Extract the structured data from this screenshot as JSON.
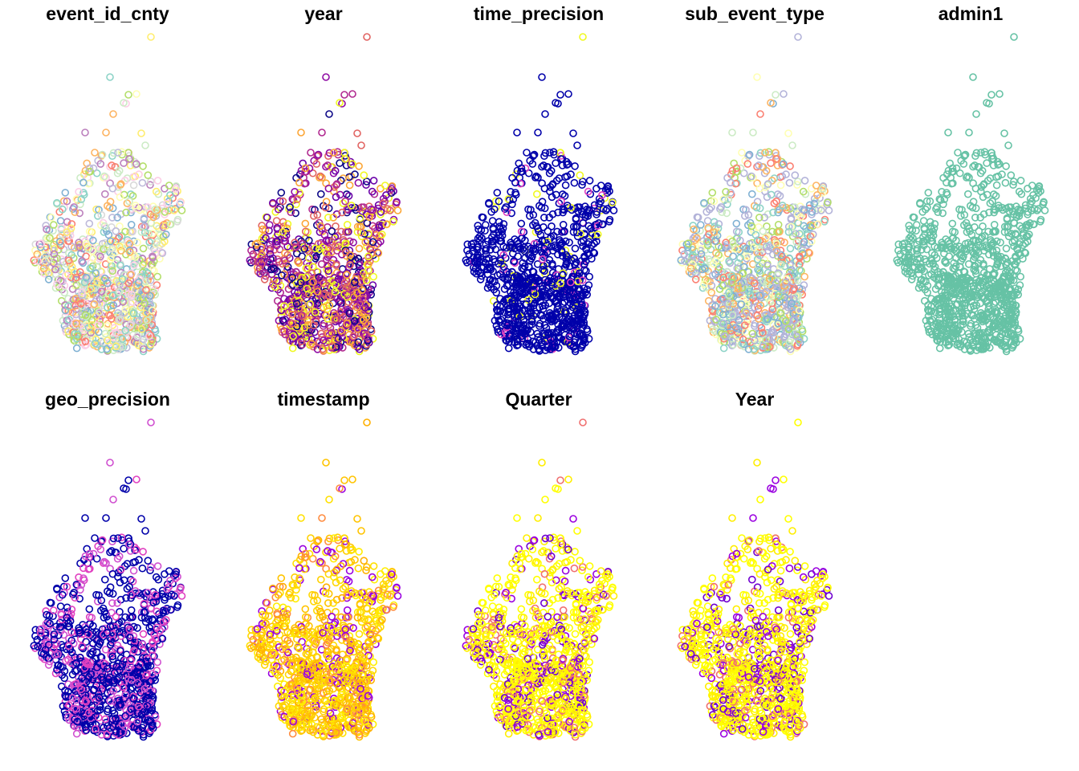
{
  "chart_data": {
    "type": "scatter",
    "layout": "small-multiples",
    "axes": "none",
    "grid": false,
    "legend": "none",
    "marker": "open-circle",
    "panels": [
      {
        "title": "event_id_cnty",
        "palette": "set3-mixed"
      },
      {
        "title": "year",
        "palette": "plasma-mixed"
      },
      {
        "title": "time_precision",
        "palette": "mostly-dark-blue"
      },
      {
        "title": "sub_event_type",
        "palette": "pastel-mixed"
      },
      {
        "title": "admin1",
        "palette": "single-teal"
      },
      {
        "title": "geo_precision",
        "palette": "blue-magenta"
      },
      {
        "title": "timestamp",
        "palette": "yellow-orange"
      },
      {
        "title": "Quarter",
        "palette": "yellow-dominant"
      },
      {
        "title": "Year",
        "palette": "yellow-dominant"
      }
    ],
    "palettes": {
      "set3-mixed": [
        "#8DD3C7",
        "#FFFFB3",
        "#BEBADA",
        "#FB8072",
        "#80B1D3",
        "#FDB462",
        "#B3DE69",
        "#FCCDE5",
        "#D9D9D9",
        "#BC80BD",
        "#CCEBC5",
        "#FFED6F"
      ],
      "plasma-mixed": [
        "#0D0887",
        "#6A00A8",
        "#B12A90",
        "#E16462",
        "#FCA636",
        "#F0F921",
        "#8F0DA4"
      ],
      "mostly-dark-blue": [
        "#0000AA",
        "#0000AA",
        "#0000AA",
        "#0000AA",
        "#0000AA",
        "#0000AA",
        "#0000AA",
        "#0000AA",
        "#0000AA",
        "#0000AA",
        "#0000AA",
        "#0000AA",
        "#0000AA",
        "#0000AA",
        "#0000AA",
        "#0000AA",
        "#0000AA",
        "#0000AA",
        "#0000AA",
        "#F0F921",
        "#E040C0"
      ],
      "pastel-mixed": [
        "#B3B3D9",
        "#B3B3D9",
        "#FFFFB3",
        "#FB8072",
        "#8DD3C7",
        "#80B1D3",
        "#B3DE69",
        "#FDB462",
        "#CCEBC5"
      ],
      "single-teal": [
        "#66C2A5"
      ],
      "blue-magenta": [
        "#0000AA",
        "#0000AA",
        "#0000AA",
        "#E040C0",
        "#D050D0"
      ],
      "yellow-orange": [
        "#FFE000",
        "#FFD700",
        "#FFC400",
        "#FFB000",
        "#FFEE00",
        "#FF8C40",
        "#9A00E0",
        "#FFD000"
      ],
      "yellow-dominant": [
        "#FFFF00",
        "#FFFF00",
        "#FFEE00",
        "#FFFF00",
        "#FFFF00",
        "#FFFF00",
        "#9A00E0",
        "#F07070",
        "#FFEE00",
        "#7000D0"
      ]
    }
  }
}
